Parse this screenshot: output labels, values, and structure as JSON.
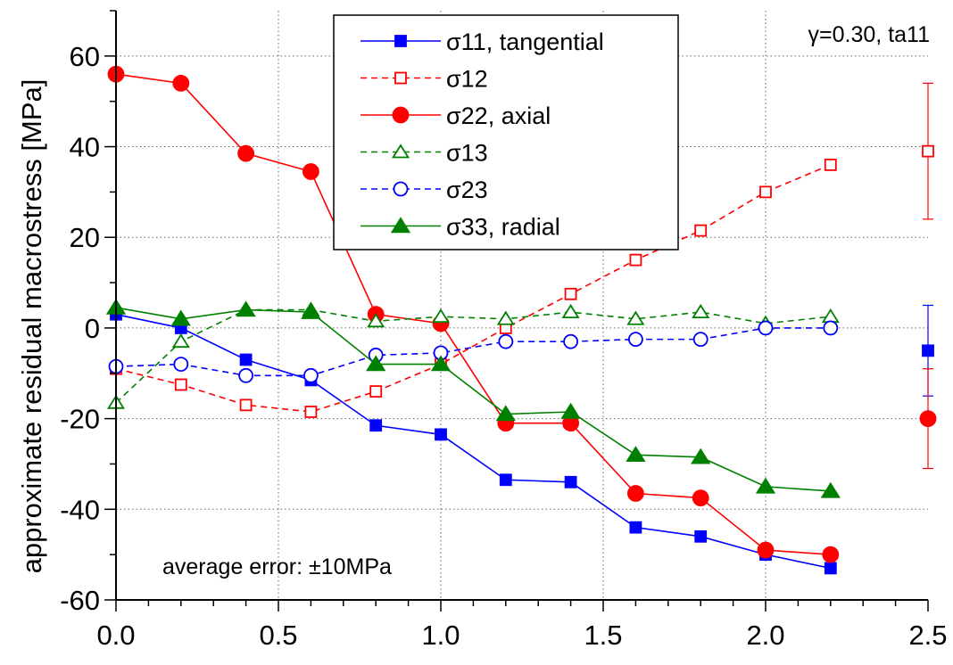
{
  "chart_data": {
    "type": "line",
    "title": "",
    "annotation": "γ=0.30, ta11",
    "note": "average error: ±10MPa",
    "xlabel": "",
    "ylabel": "approximate residual macrostress [MPa]",
    "xlim": [
      0,
      2.5
    ],
    "ylim": [
      -60,
      70
    ],
    "x_ticks": [
      0.0,
      0.5,
      1.0,
      1.5,
      2.0,
      2.5
    ],
    "x_tick_labels": [
      "0.0",
      "0.5",
      "1.0",
      "1.5",
      "2.0",
      "2.5"
    ],
    "y_ticks": [
      -60,
      -40,
      -20,
      0,
      20,
      40,
      60
    ],
    "y_tick_labels": [
      "-60",
      "-40",
      "-20",
      "0",
      "20",
      "40",
      "60"
    ],
    "grid": true,
    "legend_position": "top-center",
    "x": [
      0.0,
      0.2,
      0.4,
      0.6,
      0.8,
      1.0,
      1.2,
      1.4,
      1.6,
      1.8,
      2.0,
      2.2
    ],
    "series": [
      {
        "name": "σ11, tangential",
        "color": "#0000ff",
        "dash": "solid",
        "marker": "square",
        "filled": true,
        "values": [
          3,
          0,
          -7,
          -11.5,
          -21.5,
          -23.5,
          -33.5,
          -34,
          -44,
          -46,
          -50,
          -53
        ],
        "error_point": {
          "x": 2.5,
          "y": -5,
          "err": 10
        }
      },
      {
        "name": "σ12",
        "color": "#ff0000",
        "dash": "dashed",
        "marker": "square",
        "filled": false,
        "values": [
          -9,
          -12.5,
          -17,
          -18.5,
          -14,
          -8,
          0,
          7.5,
          15,
          21.5,
          30,
          36
        ],
        "error_point": {
          "x": 2.5,
          "y": 39,
          "err": 15
        }
      },
      {
        "name": "σ22, axial",
        "color": "#ff0000",
        "dash": "solid",
        "marker": "circle",
        "filled": true,
        "values": [
          56,
          54,
          38.5,
          34.5,
          3,
          1,
          -21,
          -21,
          -36.5,
          -37.5,
          -49,
          -50
        ],
        "error_point": {
          "x": 2.5,
          "y": -20,
          "err": 11
        }
      },
      {
        "name": "σ13",
        "color": "#008000",
        "dash": "dashed",
        "marker": "triangle",
        "filled": false,
        "values": [
          -16.5,
          -3,
          4,
          4,
          1.5,
          2.5,
          2,
          3.5,
          2,
          3.5,
          1,
          2.5
        ]
      },
      {
        "name": "σ23",
        "color": "#0000ff",
        "dash": "dashed",
        "marker": "circle",
        "filled": false,
        "values": [
          -8.5,
          -8,
          -10.5,
          -10.5,
          -6,
          -5.5,
          -3,
          -3,
          -2.5,
          -2.5,
          0,
          0
        ]
      },
      {
        "name": "σ33, radial",
        "color": "#008000",
        "dash": "solid",
        "marker": "triangle",
        "filled": true,
        "values": [
          4.5,
          2,
          4,
          3.5,
          -8,
          -8,
          -19,
          -18.5,
          -28,
          -28.5,
          -35,
          -36
        ]
      }
    ]
  }
}
